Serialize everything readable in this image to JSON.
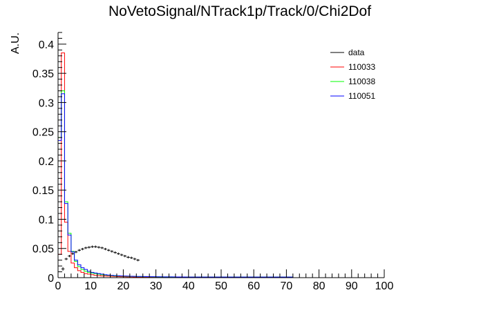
{
  "chart_data": {
    "type": "histogram",
    "title": "NoVetoSignal/NTrack1p/Track/0/Chi2Dof",
    "xlabel": "",
    "ylabel": "A.U.",
    "xlim": [
      0,
      100
    ],
    "ylim": [
      0,
      0.42
    ],
    "bin_width": 1,
    "x_major_ticks": [
      0,
      10,
      20,
      30,
      40,
      50,
      60,
      70,
      80,
      90,
      100
    ],
    "x_tick_labels": [
      "0",
      "10",
      "20",
      "30",
      "40",
      "50",
      "60",
      "70",
      "80",
      "90",
      "100"
    ],
    "y_major_ticks": [
      0,
      0.05,
      0.1,
      0.15,
      0.2,
      0.25,
      0.3,
      0.35,
      0.4
    ],
    "y_tick_labels": [
      "0",
      "0.05",
      "0.1",
      "0.15",
      "0.2",
      "0.25",
      "0.3",
      "0.35",
      "0.4"
    ],
    "grid": false,
    "legend_position": "top-right",
    "series": [
      {
        "name": "data",
        "color": "#000000",
        "style": "points-with-errors",
        "x": [
          0.5,
          1.5,
          2.5,
          3.5,
          4.5,
          5.5,
          6.5,
          7.5,
          8.5,
          9.5,
          10.5,
          11.5,
          12.5,
          13.5,
          14.5,
          15.5,
          16.5,
          17.5,
          18.5,
          19.5,
          20.5,
          21.5,
          22.5,
          23.5,
          24.5
        ],
        "values": [
          0.0,
          0.015,
          0.032,
          0.037,
          0.041,
          0.044,
          0.047,
          0.049,
          0.051,
          0.052,
          0.053,
          0.053,
          0.052,
          0.051,
          0.049,
          0.047,
          0.045,
          0.043,
          0.041,
          0.039,
          0.037,
          0.035,
          0.034,
          0.032,
          0.03
        ],
        "errors": [
          0,
          0.003,
          0.002,
          0.002,
          0.002,
          0.002,
          0.002,
          0.002,
          0.002,
          0.002,
          0.002,
          0.002,
          0.002,
          0.002,
          0.002,
          0.002,
          0.002,
          0.002,
          0.002,
          0.002,
          0.002,
          0.002,
          0.002,
          0.002,
          0.002
        ]
      },
      {
        "name": "110033",
        "color": "#ff0000",
        "style": "step",
        "x_start": 0,
        "values": [
          0.04,
          0.385,
          0.095,
          0.045,
          0.025,
          0.017,
          0.012,
          0.009,
          0.007,
          0.006,
          0.005,
          0.004,
          0.0035,
          0.003,
          0.0028,
          0.0025,
          0.0022,
          0.002,
          0.0018,
          0.0016,
          0.0015,
          0.0014,
          0.0013,
          0.0012,
          0.0011,
          0.001,
          0.001,
          0.001,
          0.001,
          0.001,
          0.001,
          0.001,
          0.001,
          0.001,
          0.001,
          0.001,
          0.001,
          0.001,
          0.001,
          0.001,
          0.001,
          0.001,
          0.001,
          0.001,
          0.001,
          0.001,
          0.001,
          0.001,
          0.001,
          0.001,
          0.001,
          0.001,
          0.0008,
          0.0008,
          0.0008,
          0.0008,
          0.0008,
          0.0008,
          0.0008,
          0.0008,
          0.0008,
          0.0008,
          0.0008,
          0.0008,
          0.0008,
          0.0008,
          0.0008,
          0.0008,
          0.0008,
          0.0008,
          0.0008,
          0.0008,
          0,
          0,
          0,
          0,
          0,
          0,
          0,
          0,
          0,
          0,
          0,
          0,
          0,
          0,
          0,
          0,
          0,
          0,
          0,
          0,
          0,
          0,
          0,
          0,
          0,
          0,
          0,
          0
        ]
      },
      {
        "name": "110038",
        "color": "#00ff00",
        "style": "step",
        "x_start": 0,
        "values": [
          0.24,
          0.32,
          0.13,
          0.076,
          0.045,
          0.028,
          0.019,
          0.014,
          0.011,
          0.009,
          0.008,
          0.007,
          0.006,
          0.005,
          0.0045,
          0.004,
          0.0035,
          0.003,
          0.0028,
          0.0026,
          0.0024,
          0.0022,
          0.002,
          0.002,
          0.0018,
          0.0018,
          0.0017,
          0.0016,
          0.0016,
          0.0015,
          0.0015,
          0.0014,
          0.0014,
          0.0013,
          0.0013,
          0.0012,
          0.0012,
          0.0012,
          0.0011,
          0.0011,
          0.0011,
          0.001,
          0.001,
          0.001,
          0.001,
          0.001,
          0.001,
          0.001,
          0.001,
          0.001,
          0.001,
          0.001,
          0.001,
          0.001,
          0.001,
          0.001,
          0.001,
          0.001,
          0.001,
          0.001,
          0.001,
          0.001,
          0.001,
          0.001,
          0.001,
          0.001,
          0.001,
          0.001,
          0.001,
          0.001,
          0.001,
          0.001,
          0,
          0,
          0,
          0,
          0,
          0,
          0,
          0,
          0,
          0,
          0,
          0,
          0,
          0,
          0,
          0,
          0,
          0,
          0,
          0,
          0,
          0,
          0,
          0,
          0,
          0,
          0,
          0
        ]
      },
      {
        "name": "110051",
        "color": "#0000ff",
        "style": "step",
        "x_start": 0,
        "values": [
          0.235,
          0.315,
          0.127,
          0.073,
          0.044,
          0.03,
          0.022,
          0.017,
          0.014,
          0.011,
          0.009,
          0.008,
          0.007,
          0.006,
          0.005,
          0.0045,
          0.004,
          0.0036,
          0.0032,
          0.003,
          0.0028,
          0.0026,
          0.0024,
          0.0022,
          0.002,
          0.002,
          0.0019,
          0.0018,
          0.0017,
          0.0016,
          0.0015,
          0.0015,
          0.0014,
          0.0014,
          0.0013,
          0.0013,
          0.0012,
          0.0012,
          0.0012,
          0.0011,
          0.0011,
          0.0011,
          0.001,
          0.001,
          0.001,
          0.001,
          0.001,
          0.001,
          0.001,
          0.001,
          0.001,
          0.001,
          0.001,
          0.001,
          0.001,
          0.001,
          0.001,
          0.001,
          0.001,
          0.001,
          0.001,
          0.001,
          0.001,
          0.001,
          0.001,
          0.001,
          0.001,
          0.001,
          0.001,
          0.001,
          0.001,
          0.001,
          0,
          0,
          0,
          0,
          0,
          0,
          0,
          0,
          0,
          0,
          0,
          0,
          0,
          0,
          0,
          0,
          0,
          0,
          0,
          0,
          0,
          0,
          0,
          0,
          0,
          0,
          0,
          0
        ]
      }
    ]
  }
}
